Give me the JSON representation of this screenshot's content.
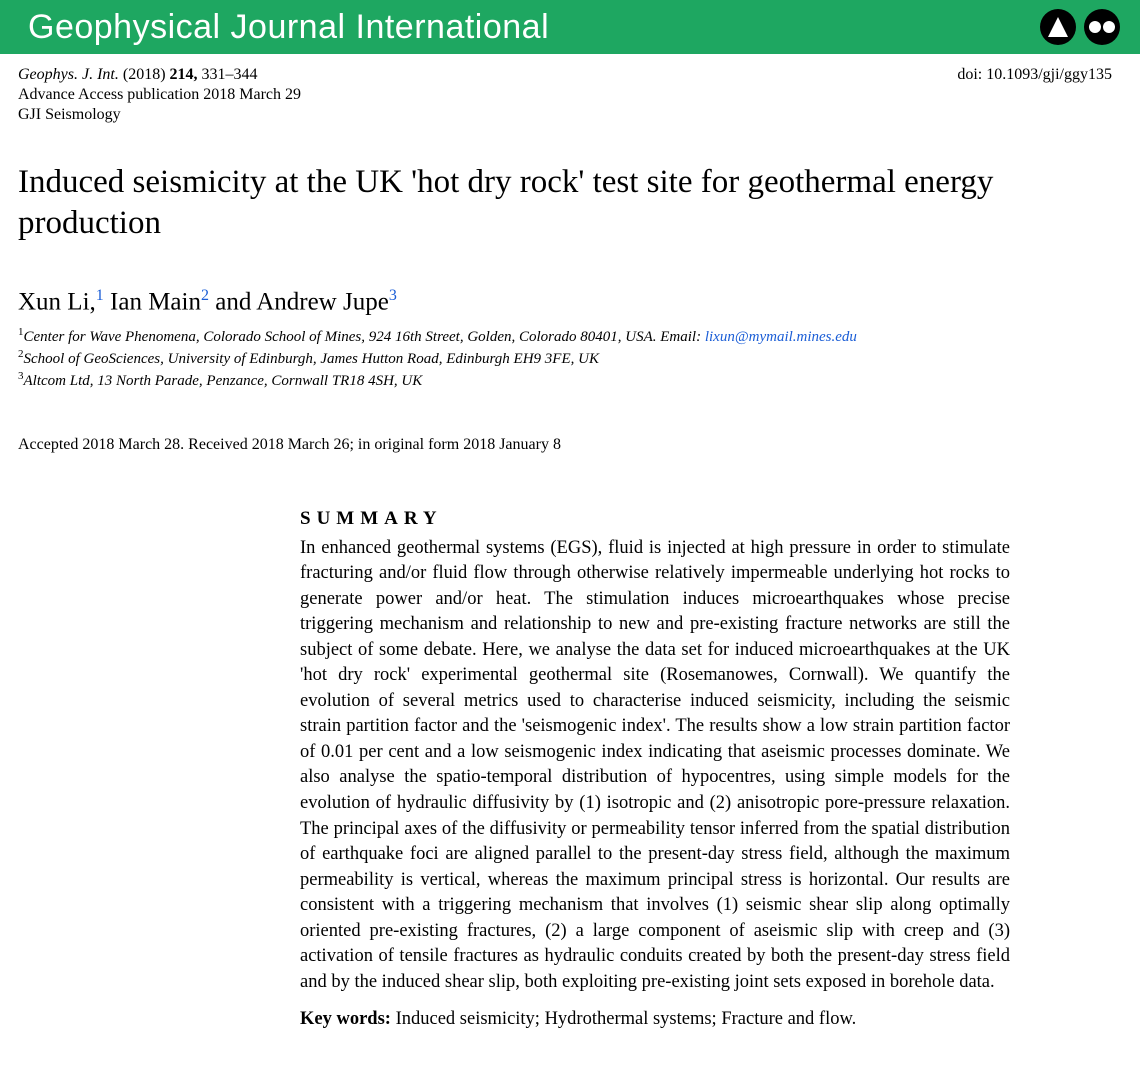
{
  "header": {
    "journal_name": "Geophysical Journal International",
    "bar_color": "#1ea761",
    "text_color": "#ffffff"
  },
  "meta": {
    "citation_prefix": "Geophys. J. Int.",
    "year": "(2018)",
    "volume": "214,",
    "pages": "331–344",
    "advance_access": "Advance Access publication 2018 March 29",
    "section": "GJI Seismology",
    "doi": "doi: 10.1093/gji/ggy135"
  },
  "title": "Induced seismicity at the UK 'hot dry rock' test site for geothermal energy production",
  "authors": {
    "a1_name": "Xun Li,",
    "a1_sup": "1",
    "a2_name": " Ian Main",
    "a2_sup": "2",
    "conj": " and ",
    "a3_name": "Andrew Jupe",
    "a3_sup": "3"
  },
  "affiliations": {
    "aff1_sup": "1",
    "aff1_text": "Center for Wave Phenomena, Colorado School of Mines, 924 16th Street, Golden, Colorado 80401, USA. Email: ",
    "aff1_email": "lixun@mymail.mines.edu",
    "aff2_sup": "2",
    "aff2_text": "School of GeoSciences, University of Edinburgh, James Hutton Road, Edinburgh EH9 3FE, UK",
    "aff3_sup": "3",
    "aff3_text": "Altcom Ltd, 13 North Parade, Penzance, Cornwall TR18 4SH, UK"
  },
  "dates": "Accepted 2018 March 28. Received 2018 March 26; in original form 2018 January 8",
  "summary": {
    "heading": "SUMMARY",
    "text": "In enhanced geothermal systems (EGS), fluid is injected at high pressure in order to stimulate fracturing and/or fluid flow through otherwise relatively impermeable underlying hot rocks to generate power and/or heat. The stimulation induces microearthquakes whose precise triggering mechanism and relationship to new and pre-existing fracture networks are still the subject of some debate. Here, we analyse the data set for induced microearthquakes at the UK 'hot dry rock' experimental geothermal site (Rosemanowes, Cornwall). We quantify the evolution of several metrics used to characterise induced seismicity, including the seismic strain partition factor and the 'seismogenic index'. The results show a low strain partition factor of 0.01 per cent and a low seismogenic index indicating that aseismic processes dominate. We also analyse the spatio-temporal distribution of hypocentres, using simple models for the evolution of hydraulic diffusivity by (1) isotropic and (2) anisotropic pore-pressure relaxation. The principal axes of the diffusivity or permeability tensor inferred from the spatial distribution of earthquake foci are aligned parallel to the present-day stress field, although the maximum permeability is vertical, whereas the maximum principal stress is horizontal. Our results are consistent with a triggering mechanism that involves (1) seismic shear slip along optimally oriented pre-existing fractures, (2) a large component of aseismic slip with creep and (3) activation of tensile fractures as hydraulic conduits created by both the present-day stress field and by the induced shear slip, both exploiting pre-existing joint sets exposed in borehole data.",
    "keywords_label": "Key words:",
    "keywords_text": "  Induced seismicity; Hydrothermal systems; Fracture and flow."
  },
  "colors": {
    "link_color": "#1a5dd6",
    "background": "#ffffff",
    "text": "#000000"
  }
}
